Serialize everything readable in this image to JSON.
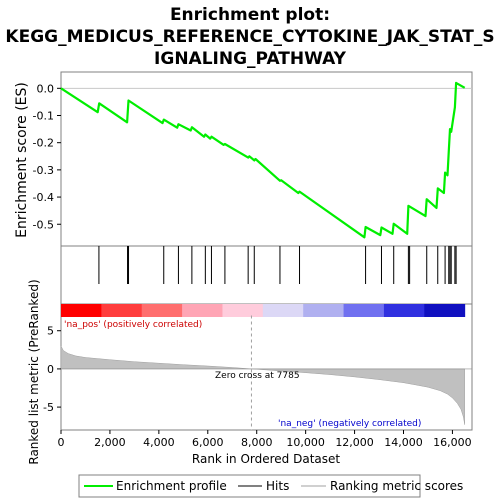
{
  "chart_data": {
    "type": "line",
    "title_lines": [
      "Enrichment plot:",
      "KEGG_MEDICUS_REFERENCE_CYTOKINE_JAK_STAT_S",
      "IGNALING_PATHWAY"
    ],
    "xlabel": "Rank in Ordered Dataset",
    "ylabel_top": "Enrichment score (ES)",
    "ylabel_bottom": "Ranked list metric (PreRanked)",
    "xlim": [
      0,
      16800
    ],
    "x_ticks": [
      0,
      2000,
      4000,
      6000,
      8000,
      10000,
      12000,
      14000,
      16000
    ],
    "x_tick_labels": [
      "0",
      "2,000",
      "4,000",
      "6,000",
      "8,000",
      "10,000",
      "12,000",
      "14,000",
      "16,000"
    ],
    "es_ylim": [
      -0.58,
      0.06
    ],
    "es_ticks": [
      0.0,
      -0.1,
      -0.2,
      -0.3,
      -0.4,
      -0.5
    ],
    "es_tick_labels": [
      "0.0",
      "-0.1",
      "-0.2",
      "-0.3",
      "-0.4",
      "-0.5"
    ],
    "metric_ylim": [
      -8,
      8.5
    ],
    "metric_ticks": [
      5,
      0,
      -5
    ],
    "metric_tick_labels": [
      "5",
      "0",
      "-5"
    ],
    "enrichment_profile": {
      "x": [
        0,
        1500,
        1560,
        2700,
        2760,
        4150,
        4200,
        4750,
        4800,
        5300,
        5350,
        5850,
        5900,
        6100,
        6150,
        6650,
        6700,
        7650,
        7700,
        7900,
        7950,
        8950,
        9000,
        9700,
        9750,
        12400,
        12450,
        13050,
        13100,
        13550,
        13600,
        14150,
        14200,
        14900,
        14950,
        15350,
        15400,
        15650,
        15700,
        15800,
        15850,
        15900,
        15950,
        16100,
        16150,
        16500
      ],
      "y": [
        0.0,
        -0.088,
        -0.055,
        -0.125,
        -0.045,
        -0.128,
        -0.115,
        -0.145,
        -0.132,
        -0.155,
        -0.143,
        -0.178,
        -0.17,
        -0.185,
        -0.178,
        -0.208,
        -0.205,
        -0.255,
        -0.25,
        -0.265,
        -0.26,
        -0.34,
        -0.338,
        -0.385,
        -0.38,
        -0.548,
        -0.51,
        -0.54,
        -0.512,
        -0.535,
        -0.498,
        -0.535,
        -0.432,
        -0.47,
        -0.408,
        -0.44,
        -0.368,
        -0.385,
        -0.31,
        -0.32,
        -0.23,
        -0.15,
        -0.16,
        -0.07,
        0.02,
        0.002
      ]
    },
    "hits": [
      1550,
      2720,
      2760,
      4200,
      4800,
      5350,
      5900,
      6150,
      6700,
      7650,
      7900,
      8950,
      9750,
      12450,
      13100,
      13600,
      14200,
      14250,
      14950,
      15400,
      15700,
      15850,
      15900,
      15950,
      16100,
      16150
    ],
    "metric_curve": {
      "x": [
        0,
        100,
        300,
        600,
        1000,
        2000,
        3000,
        4000,
        5000,
        6000,
        7000,
        7785,
        8500,
        10000,
        11000,
        12000,
        13000,
        14000,
        14500,
        15000,
        15500,
        15800,
        16000,
        16200,
        16350,
        16450,
        16500
      ],
      "y": [
        3.0,
        2.4,
        2.0,
        1.7,
        1.5,
        1.2,
        0.95,
        0.75,
        0.55,
        0.38,
        0.18,
        0.0,
        -0.15,
        -0.5,
        -0.75,
        -1.05,
        -1.4,
        -1.8,
        -2.1,
        -2.4,
        -2.85,
        -3.3,
        -3.8,
        -4.5,
        -5.3,
        -6.3,
        -7.3
      ]
    },
    "heatmap_colors": [
      "#ff0000",
      "#ff3d3d",
      "#ff6e6e",
      "#ffa5b5",
      "#ffccdc",
      "#dcd8f6",
      "#b0b0f0",
      "#7070f0",
      "#3030e0",
      "#1010c0"
    ],
    "pos_label": "'na_pos' (positively correlated)",
    "neg_label": "'na_neg' (negatively correlated)",
    "zero_cross_label": "Zero cross at 7785",
    "zero_cross": 7785,
    "legend": [
      "Enrichment profile",
      "Hits",
      "Ranking metric scores"
    ],
    "colors": {
      "profile": "#00ee00",
      "hit": "#000000",
      "metric_fill": "#c0c0c0",
      "pos_text": "#cc0000",
      "neg_text": "#0000cc"
    }
  }
}
